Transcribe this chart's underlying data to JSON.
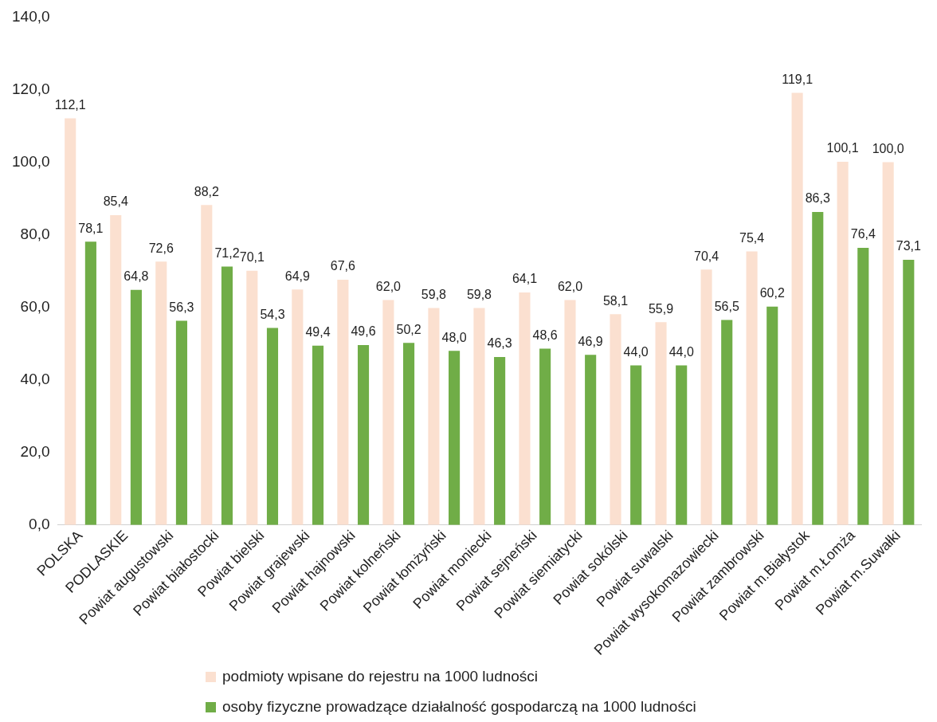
{
  "chart_data": {
    "type": "bar",
    "categories": [
      "POLSKA",
      "PODLASKIE",
      "Powiat augustowski",
      "Powiat białostocki",
      "Powiat bielski",
      "Powiat grajewski",
      "Powiat hajnowski",
      "Powiat kolneński",
      "Powiat łomżyński",
      "Powiat moniecki",
      "Powiat sejneński",
      "Powiat siemiatycki",
      "Powiat sokólski",
      "Powiat suwalski",
      "Powiat wysokomazowiecki",
      "Powiat zambrowski",
      "Powiat m.Białystok",
      "Powiat m.Łomża",
      "Powiat m.Suwałki"
    ],
    "series": [
      {
        "name": "podmioty wpisane do rejestru na 1000 ludności",
        "color": "#fbe0d0",
        "values": [
          112.1,
          85.4,
          72.6,
          88.2,
          70.1,
          64.9,
          67.6,
          62.0,
          59.8,
          59.8,
          64.1,
          62.0,
          58.1,
          55.9,
          70.4,
          75.4,
          119.1,
          100.1,
          100.0
        ],
        "value_labels": [
          "112,1",
          "85,4",
          "72,6",
          "88,2",
          "70,1",
          "64,9",
          "67,6",
          "62,0",
          "59,8",
          "59,8",
          "64,1",
          "62,0",
          "58,1",
          "55,9",
          "70,4",
          "75,4",
          "119,1",
          "100,1",
          "100,0"
        ]
      },
      {
        "name": "osoby fizyczne prowadzące działalność gospodarczą na 1000 ludności",
        "color": "#70ad47",
        "values": [
          78.1,
          64.8,
          56.3,
          71.2,
          54.3,
          49.4,
          49.6,
          50.2,
          48.0,
          46.3,
          48.6,
          46.9,
          44.0,
          44.0,
          56.5,
          60.2,
          86.3,
          76.4,
          73.1
        ],
        "value_labels": [
          "78,1",
          "64,8",
          "56,3",
          "71,2",
          "54,3",
          "49,4",
          "49,6",
          "50,2",
          "48,0",
          "46,3",
          "48,6",
          "46,9",
          "44,0",
          "44,0",
          "56,5",
          "60,2",
          "86,3",
          "76,4",
          "73,1"
        ]
      }
    ],
    "ylim": [
      0,
      140
    ],
    "yticks": [
      {
        "value": 0,
        "label": "0,0"
      },
      {
        "value": 20,
        "label": "20,0"
      },
      {
        "value": 40,
        "label": "40,0"
      },
      {
        "value": 60,
        "label": "60,0"
      },
      {
        "value": 80,
        "label": "80,0"
      },
      {
        "value": 100,
        "label": "100,0"
      },
      {
        "value": 120,
        "label": "120,0"
      },
      {
        "value": 140,
        "label": "140,0"
      }
    ],
    "grid": false,
    "legend": "bottom"
  }
}
